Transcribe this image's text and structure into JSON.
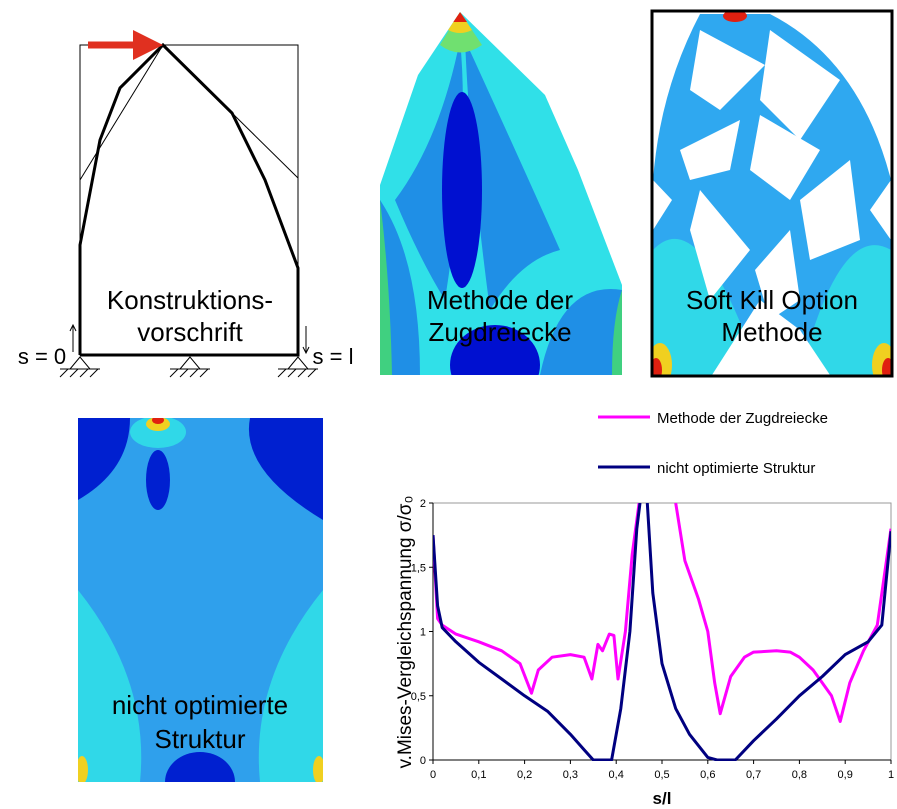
{
  "panel_labels": [
    [
      "Konstruktions-",
      "vorschrift"
    ],
    [
      "Methode der",
      "Zugdreiecke"
    ],
    [
      "Soft Kill Option",
      "Methode"
    ],
    [
      "nicht optimierte",
      "Struktur"
    ]
  ],
  "support_labels": [
    "s = 0",
    "s = l"
  ],
  "chart_data": {
    "type": "line",
    "xlabel": "s/l",
    "ylabel": "v.Mises-Vergleichspannung σ/σ₀",
    "xlim": [
      0,
      1
    ],
    "ylim": [
      0,
      2
    ],
    "xticks": [
      0,
      {
        "value": 0.1,
        "label": "0,1"
      },
      {
        "value": 0.2,
        "label": "0,2"
      },
      {
        "value": 0.3,
        "label": "0,3"
      },
      {
        "value": 0.4,
        "label": "0,4"
      },
      {
        "value": 0.5,
        "label": "0,5"
      },
      {
        "value": 0.6,
        "label": "0,6"
      },
      {
        "value": 0.7,
        "label": "0,7"
      },
      {
        "value": 0.8,
        "label": "0,8"
      },
      {
        "value": 0.9,
        "label": "0,9"
      },
      1
    ],
    "yticks": [
      0,
      {
        "value": 0.5,
        "label": "0,5"
      },
      1,
      {
        "value": 1.5,
        "label": "1,5"
      },
      2
    ],
    "grid": false,
    "series": [
      {
        "name": "Methode der Zugdreiecke",
        "color": "#ff00ff",
        "x": [
          0,
          0.01,
          0.02,
          0.05,
          0.1,
          0.15,
          0.19,
          0.215,
          0.23,
          0.26,
          0.3,
          0.33,
          0.347,
          0.36,
          0.37,
          0.385,
          0.395,
          0.404,
          0.42,
          0.435,
          0.45,
          0.49,
          0.53,
          0.55,
          0.58,
          0.6,
          0.615,
          0.627,
          0.65,
          0.68,
          0.7,
          0.75,
          0.78,
          0.8,
          0.83,
          0.87,
          0.889,
          0.91,
          0.94,
          0.97,
          1
        ],
        "values": [
          1.75,
          1.1,
          1.05,
          0.98,
          0.92,
          0.85,
          0.75,
          0.52,
          0.7,
          0.8,
          0.82,
          0.8,
          0.63,
          0.9,
          0.85,
          0.98,
          0.97,
          0.63,
          1.0,
          1.6,
          2.0,
          null,
          2.0,
          1.55,
          1.25,
          1.0,
          0.6,
          0.36,
          0.65,
          0.8,
          0.84,
          0.85,
          0.84,
          0.8,
          0.7,
          0.5,
          0.3,
          0.6,
          0.85,
          1.05,
          1.8
        ]
      },
      {
        "name": "nicht optimierte Struktur",
        "color": "#000080",
        "x": [
          0,
          0.01,
          0.02,
          0.05,
          0.1,
          0.15,
          0.2,
          0.25,
          0.3,
          0.33,
          0.35,
          0.37,
          0.39,
          0.41,
          0.43,
          0.445,
          0.452,
          0.46,
          0.468,
          0.48,
          0.5,
          0.53,
          0.56,
          0.6,
          0.62,
          0.66,
          0.7,
          0.75,
          0.8,
          0.85,
          0.9,
          0.95,
          0.98,
          1
        ],
        "values": [
          1.75,
          1.2,
          1.03,
          0.92,
          0.76,
          0.63,
          0.5,
          0.38,
          0.2,
          0.08,
          0,
          0,
          0,
          0.4,
          1.0,
          1.8,
          2.0,
          null,
          2.0,
          1.3,
          0.75,
          0.4,
          0.2,
          0.02,
          0,
          0,
          0.15,
          0.32,
          0.5,
          0.65,
          0.82,
          0.92,
          1.05,
          1.78
        ]
      }
    ]
  }
}
